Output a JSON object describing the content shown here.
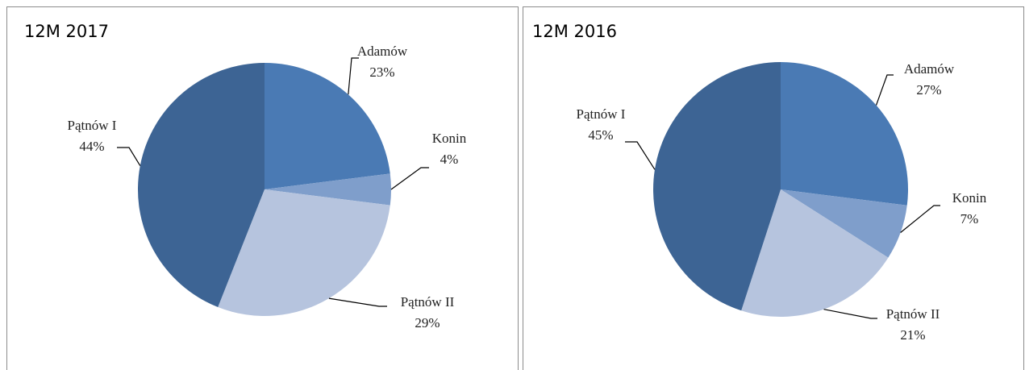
{
  "chart_data": [
    {
      "type": "pie",
      "title": "12M 2017",
      "categories": [
        "Adamów",
        "Konin",
        "Pątnów II",
        "Pątnów I"
      ],
      "values": [
        23,
        4,
        29,
        44
      ],
      "value_labels": [
        "23%",
        "4%",
        "29%",
        "44%"
      ],
      "colors": [
        "#4a7ab4",
        "#7f9ecb",
        "#b6c4de",
        "#3d6494"
      ]
    },
    {
      "type": "pie",
      "title": "12M 2016",
      "categories": [
        "Adamów",
        "Konin",
        "Pątnów II",
        "Pątnów I"
      ],
      "values": [
        27,
        7,
        21,
        45
      ],
      "value_labels": [
        "27%",
        "7%",
        "21%",
        "45%"
      ],
      "colors": [
        "#4a7ab4",
        "#7f9ecb",
        "#b6c4de",
        "#3d6494"
      ]
    }
  ]
}
